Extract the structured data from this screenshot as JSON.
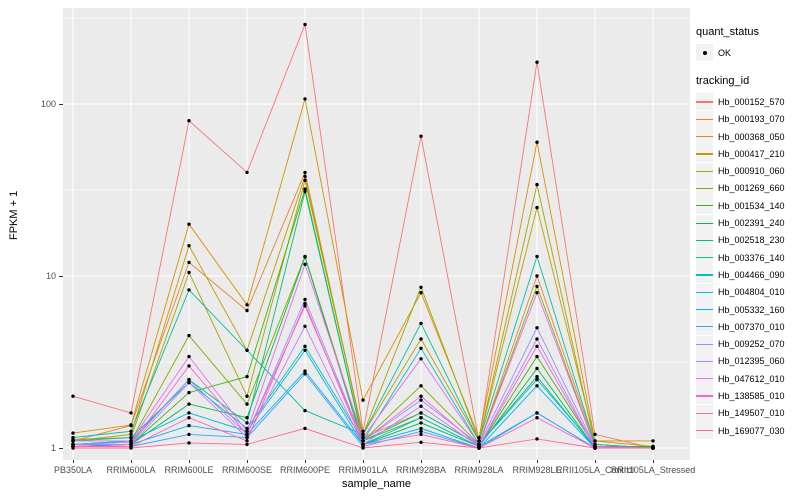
{
  "chart_data": {
    "type": "line",
    "title": "",
    "xlabel": "sample_name",
    "ylabel": "FPKM + 1",
    "y_scale": "log10",
    "y_ticks": [
      1,
      10,
      100
    ],
    "y_minor_breaks": [
      3.162,
      31.62,
      316.2
    ],
    "ylim": [
      0.95,
      360
    ],
    "grid": "white-on-gray",
    "point_color": "#000000",
    "panel_background": "#EBEBEB",
    "categories": [
      "PB350LA",
      "RRIM600LA",
      "RRIM600LE",
      "RRIM600SE",
      "RRIM600PE",
      "RRIM901LA",
      "RRIM928BA",
      "RRIM928LA",
      "RRIM928LE",
      "RRII105LA_Control",
      "RRII105LA_Stressed"
    ],
    "series": [
      {
        "name": "Hb_000152_570",
        "color": "#F8766D",
        "values": [
          2.0,
          1.6,
          80,
          40,
          290,
          1.25,
          65,
          1.1,
          175,
          1.2,
          1.0
        ]
      },
      {
        "name": "Hb_000193_070",
        "color": "#EA8331",
        "values": [
          1.1,
          1.35,
          12,
          6.3,
          40,
          1.15,
          1.6,
          1.05,
          10,
          1.05,
          1.0
        ]
      },
      {
        "name": "Hb_000368_050",
        "color": "#D89000",
        "values": [
          1.22,
          1.36,
          20,
          6.8,
          107,
          1.9,
          8.0,
          1.15,
          60,
          1.1,
          1.02
        ]
      },
      {
        "name": "Hb_000417_210",
        "color": "#C09B00",
        "values": [
          1.1,
          1.2,
          15,
          3.7,
          38,
          1.2,
          4.3,
          1.1,
          25,
          1.1,
          1.1
        ]
      },
      {
        "name": "Hb_000910_060",
        "color": "#A3A500",
        "values": [
          1.12,
          1.15,
          10.5,
          2.0,
          36,
          1.2,
          8.6,
          1.1,
          34,
          1.05,
          1.0
        ]
      },
      {
        "name": "Hb_001269_660",
        "color": "#7CAE00",
        "values": [
          1.05,
          1.1,
          4.5,
          1.8,
          13,
          1.1,
          2.3,
          1.05,
          8.7,
          1.02,
          1.0
        ]
      },
      {
        "name": "Hb_001534_140",
        "color": "#39B600",
        "values": [
          1.05,
          1.05,
          2.1,
          2.6,
          32,
          1.1,
          1.5,
          1.02,
          3.4,
          1.02,
          1.02
        ]
      },
      {
        "name": "Hb_002391_240",
        "color": "#00BB4E",
        "values": [
          1.02,
          1.05,
          1.8,
          1.5,
          12.9,
          1.05,
          1.4,
          1.02,
          2.9,
          1.0,
          1.0
        ]
      },
      {
        "name": "Hb_002518_230",
        "color": "#00BF7D",
        "values": [
          1.05,
          1.1,
          2.5,
          1.4,
          31,
          1.1,
          1.6,
          1.05,
          2.6,
          1.0,
          1.0
        ]
      },
      {
        "name": "Hb_003376_140",
        "color": "#00C1A3",
        "values": [
          1.15,
          1.25,
          8.3,
          3.7,
          1.65,
          1.2,
          5.3,
          1.1,
          13,
          1.05,
          1.0
        ]
      },
      {
        "name": "Hb_004466_090",
        "color": "#00BFC4",
        "values": [
          1.1,
          1.15,
          2.4,
          1.3,
          3.9,
          1.1,
          3.8,
          1.05,
          2.5,
          1.02,
          1.0
        ]
      },
      {
        "name": "Hb_004804_010",
        "color": "#00BAE0",
        "values": [
          1.05,
          1.1,
          1.6,
          1.25,
          3.7,
          1.05,
          1.5,
          1.02,
          1.6,
          1.0,
          1.0
        ]
      },
      {
        "name": "Hb_005332_160",
        "color": "#00B0F6",
        "values": [
          1.02,
          1.05,
          1.35,
          1.2,
          2.8,
          1.05,
          1.3,
          1.0,
          2.3,
          1.0,
          1.0
        ]
      },
      {
        "name": "Hb_007370_010",
        "color": "#35A2FF",
        "values": [
          1.02,
          1.02,
          1.2,
          1.15,
          2.7,
          1.02,
          1.25,
          1.0,
          1.6,
          1.0,
          1.0
        ]
      },
      {
        "name": "Hb_009252_070",
        "color": "#9590FF",
        "values": [
          1.05,
          1.08,
          2.5,
          1.2,
          7.3,
          1.1,
          1.9,
          1.05,
          5.0,
          1.02,
          1.0
        ]
      },
      {
        "name": "Hb_012395_060",
        "color": "#C77CFF",
        "values": [
          1.05,
          1.05,
          2.4,
          1.15,
          5.1,
          1.05,
          1.75,
          1.02,
          4.3,
          1.0,
          1.0
        ]
      },
      {
        "name": "Hb_047612_010",
        "color": "#E76BF3",
        "values": [
          1.1,
          1.1,
          3.4,
          1.25,
          11.7,
          1.15,
          3.3,
          1.05,
          8.0,
          1.02,
          1.0
        ]
      },
      {
        "name": "Hb_138585_010",
        "color": "#FA62DB",
        "values": [
          1.05,
          1.05,
          3.0,
          1.2,
          6.7,
          1.1,
          2.0,
          1.02,
          3.9,
          1.0,
          1.0
        ]
      },
      {
        "name": "Hb_149507_010",
        "color": "#FF62BC",
        "values": [
          1.02,
          1.02,
          1.5,
          1.1,
          6.9,
          1.05,
          1.2,
          1.0,
          1.5,
          1.0,
          1.0
        ]
      },
      {
        "name": "Hb_169077_030",
        "color": "#FF6A98",
        "values": [
          1.0,
          1.0,
          1.07,
          1.05,
          1.3,
          1.0,
          1.08,
          1.0,
          1.13,
          1.0,
          1.0
        ]
      }
    ]
  },
  "legend": {
    "quant_status_title": "quant_status",
    "quant_status_items": [
      {
        "label": "OK",
        "symbol": "point"
      }
    ],
    "tracking_id_title": "tracking_id"
  }
}
